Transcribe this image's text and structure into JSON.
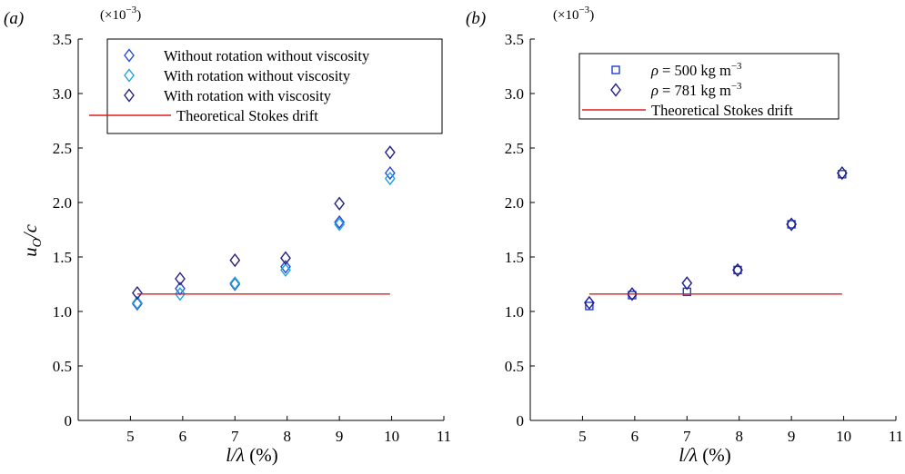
{
  "chart_data": [
    {
      "type": "scatter",
      "panel_label": "(a)",
      "multiplier": {
        "base": "(×10",
        "exp": "−3",
        "close": ")"
      },
      "xlabel": {
        "main": "l/λ",
        "suffix": " (%)"
      },
      "ylabel": {
        "main": "u",
        "sub": "O",
        "tail": "/c"
      },
      "xlim": [
        4,
        11
      ],
      "ylim": [
        0,
        3.5
      ],
      "xticks": [
        5,
        6,
        7,
        8,
        9,
        10,
        11
      ],
      "xtick_labels": [
        "5",
        "6",
        "7",
        "8",
        "9",
        "10",
        "11"
      ],
      "yticks": [
        0,
        0.5,
        1.0,
        1.5,
        2.0,
        2.5,
        3.0,
        3.5
      ],
      "ytick_labels": [
        "0",
        "0.5",
        "1.0",
        "1.5",
        "2.0",
        "2.5",
        "3.0",
        "3.5"
      ],
      "legend_position": "top-right",
      "series": [
        {
          "name": "Without rotation without viscosity",
          "marker": "diamond",
          "color": "#2a4ad8",
          "x": [
            5.13,
            5.95,
            7.0,
            7.97,
            9.0,
            9.97
          ],
          "y": [
            1.07,
            1.21,
            1.25,
            1.41,
            1.82,
            2.27
          ]
        },
        {
          "name": "With rotation without viscosity",
          "marker": "diamond",
          "color": "#1ea3dd",
          "x": [
            5.13,
            5.95,
            7.0,
            7.97,
            9.0,
            9.97
          ],
          "y": [
            1.08,
            1.16,
            1.26,
            1.38,
            1.8,
            2.22
          ]
        },
        {
          "name": "With rotation with viscosity",
          "marker": "diamond",
          "color": "#25217a",
          "x": [
            5.13,
            5.95,
            7.0,
            7.97,
            9.0,
            9.97
          ],
          "y": [
            1.17,
            1.3,
            1.47,
            1.49,
            1.99,
            2.46
          ]
        },
        {
          "name": "Theoretical Stokes drift",
          "marker": "line",
          "color": "#e01b1b",
          "x": [
            5.13,
            9.97
          ],
          "y": [
            1.16,
            1.16
          ]
        }
      ]
    },
    {
      "type": "scatter",
      "panel_label": "(b)",
      "multiplier": {
        "base": "(×10",
        "exp": "−3",
        "close": ")"
      },
      "xlabel": {
        "main": "l/λ",
        "suffix": " (%)"
      },
      "xlim": [
        4,
        11
      ],
      "ylim": [
        0,
        3.5
      ],
      "xticks": [
        5,
        6,
        7,
        8,
        9,
        10,
        11
      ],
      "xtick_labels": [
        "5",
        "6",
        "7",
        "8",
        "9",
        "10",
        "11"
      ],
      "yticks": [
        0,
        0.5,
        1.0,
        1.5,
        2.0,
        2.5,
        3.0,
        3.5
      ],
      "ytick_labels": [
        "0",
        "0.5",
        "1.0",
        "1.5",
        "2.0",
        "2.5",
        "3.0",
        "3.5"
      ],
      "legend_position": "top-right",
      "series": [
        {
          "name": "ρ = 500 kg m",
          "name_sup": "−3",
          "marker": "square",
          "color": "#1d3fd0",
          "x": [
            5.13,
            5.95,
            7.0,
            7.97,
            9.0,
            9.97
          ],
          "y": [
            1.05,
            1.15,
            1.18,
            1.38,
            1.8,
            2.26
          ]
        },
        {
          "name": "ρ = 781 kg m",
          "name_sup": "−3",
          "marker": "diamond",
          "color": "#1d1a8a",
          "x": [
            5.13,
            5.95,
            7.0,
            7.97,
            9.0,
            9.97
          ],
          "y": [
            1.08,
            1.16,
            1.26,
            1.38,
            1.8,
            2.27
          ]
        },
        {
          "name": "Theoretical Stokes drift",
          "marker": "line",
          "color": "#e01b1b",
          "x": [
            5.13,
            9.97
          ],
          "y": [
            1.16,
            1.16
          ]
        }
      ]
    }
  ]
}
